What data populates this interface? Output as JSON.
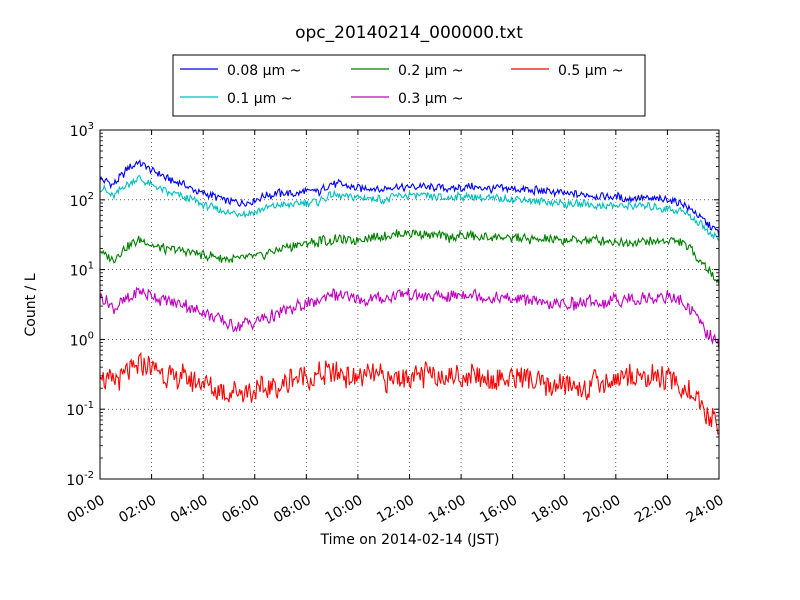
{
  "chart_data": {
    "type": "line",
    "title": "opc_20140214_000000.txt",
    "xlabel": "Time on 2014-02-14 (JST)",
    "ylabel": "Count / L",
    "y_scale": "log",
    "ylim": [
      0.01,
      1000
    ],
    "xlim": [
      "00:00",
      "24:00"
    ],
    "x_ticks": [
      "00:00",
      "02:00",
      "04:00",
      "06:00",
      "08:00",
      "10:00",
      "12:00",
      "14:00",
      "16:00",
      "18:00",
      "20:00",
      "22:00",
      "24:00"
    ],
    "y_ticks": [
      {
        "value": 0.01,
        "base": "10",
        "exp": "-2"
      },
      {
        "value": 0.1,
        "base": "10",
        "exp": "-1"
      },
      {
        "value": 1,
        "base": "10",
        "exp": "0"
      },
      {
        "value": 10,
        "base": "10",
        "exp": "1"
      },
      {
        "value": 100,
        "base": "10",
        "exp": "2"
      },
      {
        "value": 1000,
        "base": "10",
        "exp": "3"
      }
    ],
    "grid": true,
    "legend": "top-center",
    "x": [
      "00:00",
      "00:30",
      "01:00",
      "01:30",
      "02:00",
      "02:30",
      "03:00",
      "03:30",
      "04:00",
      "04:30",
      "05:00",
      "05:30",
      "06:00",
      "06:30",
      "07:00",
      "07:30",
      "08:00",
      "08:30",
      "09:00",
      "09:30",
      "10:00",
      "10:30",
      "11:00",
      "11:30",
      "12:00",
      "12:30",
      "13:00",
      "13:30",
      "14:00",
      "14:30",
      "15:00",
      "15:30",
      "16:00",
      "16:30",
      "17:00",
      "17:30",
      "18:00",
      "18:30",
      "19:00",
      "19:30",
      "20:00",
      "20:30",
      "21:00",
      "21:30",
      "22:00",
      "22:30",
      "23:00",
      "23:30",
      "24:00"
    ],
    "series": [
      {
        "name": "0.08 μm ~",
        "color": "#0000ff",
        "values": [
          210,
          160,
          260,
          350,
          260,
          210,
          180,
          150,
          125,
          110,
          95,
          92,
          100,
          115,
          125,
          120,
          135,
          130,
          170,
          165,
          150,
          145,
          140,
          150,
          155,
          155,
          150,
          145,
          150,
          150,
          145,
          145,
          140,
          140,
          135,
          130,
          120,
          120,
          115,
          110,
          110,
          105,
          105,
          100,
          100,
          90,
          70,
          48,
          32
        ]
      },
      {
        "name": "0.1 μm ~",
        "color": "#00bfbf",
        "values": [
          150,
          115,
          160,
          210,
          160,
          130,
          115,
          100,
          85,
          75,
          65,
          63,
          66,
          75,
          85,
          85,
          90,
          95,
          120,
          115,
          110,
          105,
          100,
          110,
          115,
          115,
          110,
          105,
          110,
          110,
          105,
          105,
          100,
          100,
          95,
          92,
          88,
          87,
          85,
          83,
          82,
          81,
          80,
          77,
          75,
          70,
          55,
          38,
          27
        ]
      },
      {
        "name": "0.2 μm ~",
        "color": "#008000",
        "values": [
          18,
          14,
          21,
          26,
          23,
          20,
          19,
          18,
          16,
          15,
          14,
          14,
          15,
          17,
          20,
          22,
          24,
          25,
          27,
          26,
          27,
          29,
          30,
          32,
          34,
          32,
          30,
          29,
          30,
          30,
          29,
          29,
          28,
          28,
          27,
          27,
          26,
          27,
          27,
          26,
          25,
          25,
          24,
          26,
          27,
          25,
          18,
          11,
          6.5
        ]
      },
      {
        "name": "0.3 μm ~",
        "color": "#bf00bf",
        "values": [
          4.0,
          2.8,
          3.6,
          4.8,
          4.2,
          3.6,
          3.3,
          2.9,
          2.4,
          2.0,
          1.6,
          1.6,
          1.8,
          2.0,
          2.4,
          2.8,
          3.2,
          3.5,
          4.5,
          4.0,
          3.8,
          3.7,
          3.8,
          4.3,
          4.6,
          4.4,
          4.2,
          4.0,
          4.3,
          4.3,
          4.0,
          4.0,
          3.8,
          3.7,
          3.4,
          3.2,
          3.1,
          3.3,
          3.5,
          3.5,
          3.6,
          3.7,
          3.8,
          4.0,
          4.1,
          3.5,
          2.4,
          1.3,
          0.8
        ]
      },
      {
        "name": "0.5 μm ~",
        "color": "#ff0000",
        "values": [
          0.35,
          0.22,
          0.3,
          0.42,
          0.38,
          0.32,
          0.3,
          0.27,
          0.22,
          0.19,
          0.17,
          0.16,
          0.18,
          0.2,
          0.23,
          0.26,
          0.28,
          0.3,
          0.35,
          0.31,
          0.29,
          0.28,
          0.27,
          0.28,
          0.3,
          0.3,
          0.29,
          0.28,
          0.3,
          0.29,
          0.28,
          0.28,
          0.27,
          0.27,
          0.25,
          0.22,
          0.2,
          0.2,
          0.22,
          0.24,
          0.26,
          0.28,
          0.3,
          0.29,
          0.27,
          0.22,
          0.15,
          0.09,
          0.06
        ]
      }
    ]
  }
}
